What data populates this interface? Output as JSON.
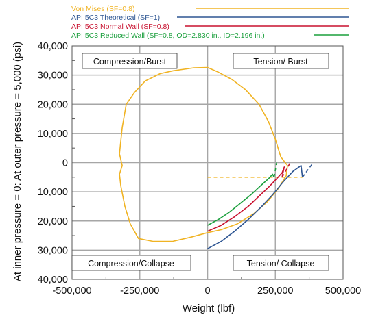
{
  "chart_data": {
    "type": "line",
    "xlabel": "Weight (lbf)",
    "ylabel": "At inner pressure = 0: At outer pressure = 5,000 (psi)",
    "xlim": [
      -500000,
      500000
    ],
    "ylim": [
      -40000,
      40000
    ],
    "x_ticks": [
      -500000,
      -250000,
      0,
      250000,
      500000
    ],
    "x_tick_labels": [
      "-500,000",
      "-250,000",
      "0",
      "250,000",
      "500,000"
    ],
    "y_ticks": [
      40000,
      30000,
      20000,
      10000,
      0,
      -10000,
      -20000,
      -30000,
      -40000
    ],
    "y_tick_labels": [
      "40,000",
      "30,000",
      "20,000",
      "10,000",
      "0",
      "10,000",
      "20,000",
      "30,000",
      "40,000"
    ],
    "grid": true,
    "legend_position": "top",
    "region_labels": {
      "compression_burst": "Compression/Burst",
      "tension_burst": "Tension/ Burst",
      "compression_collapse": "Compression/Collapse",
      "tension_collapse": "Tension/ Collapse"
    },
    "series": [
      {
        "name": "Von Mises  (SF=0.8)",
        "color": "#f0b323",
        "points": [
          [
            -125000,
            31500
          ],
          [
            -50000,
            32500
          ],
          [
            0,
            32600
          ],
          [
            40000,
            31000
          ],
          [
            90000,
            28500
          ],
          [
            140000,
            25000
          ],
          [
            190000,
            20000
          ],
          [
            225000,
            14000
          ],
          [
            250000,
            8000
          ],
          [
            270000,
            2000
          ],
          [
            295000,
            -1000
          ],
          [
            290000,
            -4500
          ],
          [
            260000,
            -9000
          ],
          [
            220000,
            -13500
          ],
          [
            170000,
            -17500
          ],
          [
            110000,
            -21000
          ],
          [
            50000,
            -23000
          ],
          [
            0,
            -24000
          ],
          [
            -60000,
            -25500
          ],
          [
            -130000,
            -27000
          ],
          [
            -200000,
            -27000
          ],
          [
            -255000,
            -26000
          ],
          [
            -285000,
            -21000
          ],
          [
            -305000,
            -15000
          ],
          [
            -320000,
            -8000
          ],
          [
            -325000,
            -4000
          ],
          [
            -315000,
            -1000
          ],
          [
            -325000,
            3000
          ],
          [
            -315000,
            12000
          ],
          [
            -300000,
            20000
          ],
          [
            -270000,
            24000
          ],
          [
            -230000,
            28000
          ],
          [
            -175000,
            30500
          ],
          [
            -125000,
            31500
          ]
        ]
      },
      {
        "name": "API 5C3 Theoretical  (SF=1)",
        "color": "#2d5592",
        "points": [
          [
            0,
            -29500
          ],
          [
            50000,
            -27000
          ],
          [
            100000,
            -23500
          ],
          [
            150000,
            -19500
          ],
          [
            200000,
            -15000
          ],
          [
            240000,
            -11000
          ],
          [
            280000,
            -6500
          ],
          [
            315000,
            -3000
          ],
          [
            345000,
            -1000
          ],
          [
            350000,
            -5000
          ]
        ],
        "dashed_points": [
          [
            350000,
            -5000
          ],
          [
            370000,
            -2500
          ],
          [
            390000,
            0
          ]
        ]
      },
      {
        "name": "API 5C3 Normal Wall (SF=0.8)",
        "color": "#c8102e",
        "points": [
          [
            0,
            -23500
          ],
          [
            50000,
            -21500
          ],
          [
            100000,
            -18500
          ],
          [
            150000,
            -15000
          ],
          [
            190000,
            -11500
          ],
          [
            230000,
            -8000
          ],
          [
            260000,
            -5000
          ],
          [
            275000,
            -3500
          ],
          [
            283000,
            -1500
          ],
          [
            275000,
            -5000
          ]
        ],
        "dashed_points": [
          [
            275000,
            -5000
          ],
          [
            290000,
            -2500
          ],
          [
            305000,
            0
          ]
        ]
      },
      {
        "name": "API 5C3 Reduced Wall (SF=0.8, OD=2.830 in., ID=2.196 in.)",
        "color": "#1a9f3c",
        "points": [
          [
            0,
            -21500
          ],
          [
            40000,
            -19500
          ],
          [
            80000,
            -17000
          ],
          [
            120000,
            -14000
          ],
          [
            160000,
            -11000
          ],
          [
            195000,
            -8000
          ],
          [
            225000,
            -5500
          ],
          [
            240000,
            -4000
          ],
          [
            245000,
            -5000
          ]
        ],
        "dashed_points": [
          [
            245000,
            -5000
          ],
          [
            250000,
            -2500
          ],
          [
            255000,
            0
          ]
        ]
      }
    ],
    "reference_line": {
      "color": "#f0b323",
      "points": [
        [
          0,
          -5000
        ],
        [
          350000,
          -5000
        ]
      ]
    }
  }
}
